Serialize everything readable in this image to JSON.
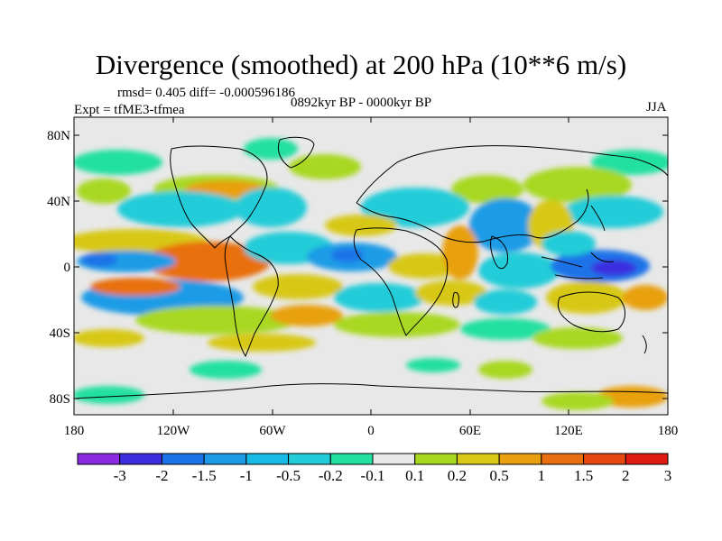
{
  "title": "Divergence (smoothed) at 200 hPa (10**6 m/s)",
  "stats": "rmsd= 0.405 diff= -0.000596186",
  "experiment": "Expt = tfME3-tfmea",
  "period": "0892kyr BP - 0000kyr BP",
  "season": "JJA",
  "axes": {
    "lat_ticks": [
      "80N",
      "40N",
      "0",
      "40S",
      "80S"
    ],
    "lon_ticks": [
      "180",
      "120W",
      "60W",
      "0",
      "60E",
      "120E",
      "180"
    ]
  },
  "colorbar": {
    "labels": [
      "-3",
      "-2",
      "-1.5",
      "-1",
      "-0.5",
      "-0.2",
      "-0.1",
      "0.1",
      "0.2",
      "0.5",
      "1",
      "1.5",
      "2",
      "3"
    ],
    "colors": [
      "#8a2be2",
      "#3a2ee0",
      "#1a73e8",
      "#1e9be6",
      "#18bbe6",
      "#22ccd8",
      "#22e0a0",
      "#e8e8e8",
      "#a8d820",
      "#d8c818",
      "#e8a010",
      "#e87010",
      "#e84810",
      "#e01a10"
    ]
  },
  "palette": {
    "land_line": "#000000",
    "background": "#e8e8e8"
  }
}
